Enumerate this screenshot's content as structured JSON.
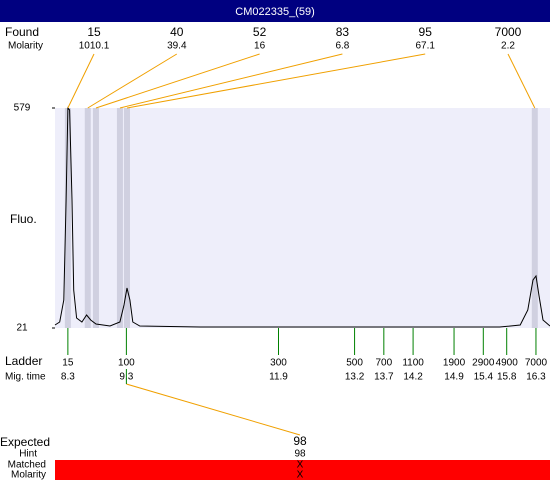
{
  "chart_data": {
    "type": "line",
    "title": "CM022335_(59)",
    "y_label": "Fluo.",
    "ylim": [
      21,
      579
    ],
    "yticks": [
      21,
      579
    ],
    "xlim": [
      8.08,
      16.54
    ],
    "background": "#eeeefa",
    "color": "#000000",
    "x": [
      8.08,
      8.16,
      8.23,
      8.27,
      8.3,
      8.33,
      8.37,
      8.4,
      8.45,
      8.54,
      8.62,
      8.69,
      8.78,
      9.02,
      9.19,
      9.26,
      9.31,
      9.36,
      9.41,
      9.53,
      10.56,
      15.68,
      16.03,
      16.16,
      16.25,
      16.3,
      16.35,
      16.42,
      16.54
    ],
    "values": [
      28.6,
      36.2,
      92,
      345.6,
      579,
      574,
      345.6,
      117.4,
      46.4,
      36.2,
      54,
      41.3,
      31.1,
      26.1,
      36.2,
      79.3,
      122.4,
      92,
      36.2,
      26.1,
      23.5,
      23.5,
      28.6,
      66.6,
      142.7,
      152.9,
      104.7,
      41.3,
      26.1
    ],
    "found": {
      "label": "Found",
      "molarity_label": "Molarity",
      "color": "#f0a000",
      "band_color": "#d0d0e0",
      "sizes": [
        15,
        40,
        52,
        83,
        95,
        7000
      ],
      "molarities": [
        1010.1,
        39.4,
        16,
        6.8,
        67.1,
        2.2
      ],
      "times": [
        8.3,
        8.64,
        8.78,
        9.19,
        9.31,
        16.28
      ]
    },
    "ladder": {
      "label": "Ladder",
      "time_label": "Mig. time",
      "color": "#008000",
      "sizes": [
        15,
        100,
        300,
        500,
        700,
        1100,
        1900,
        2900,
        4900,
        7000
      ],
      "times": [
        8.3,
        9.3,
        11.9,
        13.2,
        13.7,
        14.2,
        14.9,
        15.4,
        15.8,
        16.3
      ]
    },
    "expected": {
      "label": "Expected",
      "value": 98,
      "hint_label": "Hint",
      "hint": 98,
      "matched_label": "Matched",
      "matched": "X",
      "molarity_label": "Molarity",
      "molarity": "X",
      "bar_color": "#ff0000"
    }
  }
}
